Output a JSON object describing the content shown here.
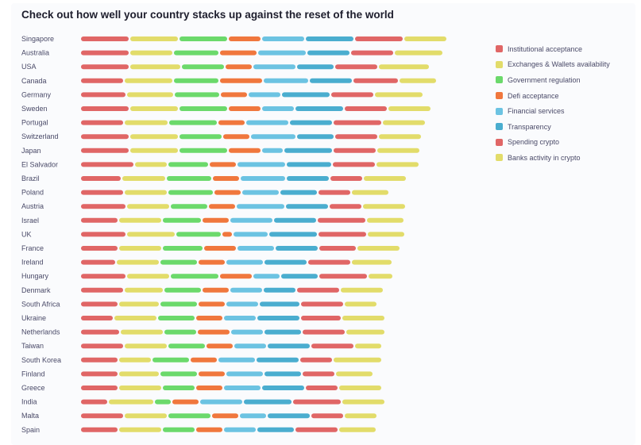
{
  "title": "Check out how well your country stacks up against the reset of the world",
  "chart_data": {
    "type": "bar",
    "stacked": true,
    "orientation": "horizontal",
    "grid": false,
    "legend_position": "right",
    "categories": [
      "Singapore",
      "Australia",
      "USA",
      "Canada",
      "Germany",
      "Sweden",
      "Portugal",
      "Switzerland",
      "Japan",
      "El Salvador",
      "Brazil",
      "Poland",
      "Austria",
      "Israel",
      "UK",
      "France",
      "Ireland",
      "Hungary",
      "Denmark",
      "South Africa",
      "Ukraine",
      "Netherlands",
      "Taiwan",
      "South Korea",
      "Finland",
      "Greece",
      "India",
      "Malta",
      "Spain"
    ],
    "series": [
      {
        "name": "Institutional acceptance",
        "color": "#e06666",
        "values": [
          62,
          62,
          62,
          55,
          58,
          62,
          55,
          62,
          62,
          68,
          52,
          55,
          58,
          48,
          58,
          48,
          45,
          58,
          55,
          48,
          42,
          50,
          55,
          48,
          48,
          48,
          35,
          55,
          48
        ]
      },
      {
        "name": "Exchanges & Wallets availability",
        "color": "#e2dc6a",
        "values": [
          62,
          55,
          65,
          62,
          60,
          62,
          56,
          62,
          62,
          42,
          56,
          55,
          55,
          55,
          62,
          55,
          55,
          55,
          50,
          52,
          55,
          55,
          55,
          42,
          52,
          55,
          58,
          55,
          55
        ]
      },
      {
        "name": "Government regulation",
        "color": "#6bd96b",
        "values": [
          62,
          58,
          55,
          58,
          58,
          62,
          62,
          55,
          62,
          52,
          58,
          58,
          48,
          50,
          58,
          52,
          48,
          62,
          48,
          48,
          48,
          42,
          48,
          48,
          48,
          42,
          22,
          55,
          42
        ]
      },
      {
        "name": "Defi acceptance",
        "color": "#f0773d",
        "values": [
          42,
          48,
          35,
          55,
          35,
          42,
          35,
          35,
          42,
          35,
          35,
          35,
          35,
          35,
          14,
          42,
          35,
          42,
          35,
          35,
          35,
          42,
          35,
          35,
          35,
          35,
          35,
          35,
          35
        ]
      },
      {
        "name": "Financial services",
        "color": "#6cc3e2",
        "values": [
          55,
          62,
          55,
          58,
          42,
          42,
          55,
          58,
          28,
          62,
          58,
          48,
          62,
          55,
          45,
          48,
          48,
          35,
          42,
          42,
          42,
          42,
          42,
          48,
          48,
          48,
          55,
          35,
          42
        ]
      },
      {
        "name": "Transparency",
        "color": "#4aadcf",
        "values": [
          62,
          55,
          48,
          55,
          62,
          62,
          55,
          48,
          62,
          58,
          55,
          48,
          55,
          55,
          62,
          55,
          55,
          48,
          42,
          52,
          55,
          48,
          55,
          55,
          48,
          55,
          62,
          55,
          48
        ]
      },
      {
        "name": "Spending crypto",
        "color": "#e06666",
        "values": [
          62,
          55,
          55,
          58,
          55,
          55,
          62,
          55,
          55,
          55,
          42,
          42,
          42,
          62,
          62,
          48,
          55,
          62,
          55,
          55,
          52,
          55,
          55,
          42,
          42,
          42,
          62,
          42,
          55
        ]
      },
      {
        "name": "Banks activity in crypto",
        "color": "#e2dc6a",
        "values": [
          55,
          62,
          65,
          48,
          62,
          55,
          55,
          55,
          55,
          55,
          55,
          48,
          55,
          48,
          48,
          55,
          52,
          32,
          55,
          42,
          55,
          50,
          35,
          62,
          48,
          55,
          55,
          42,
          48
        ]
      }
    ]
  }
}
